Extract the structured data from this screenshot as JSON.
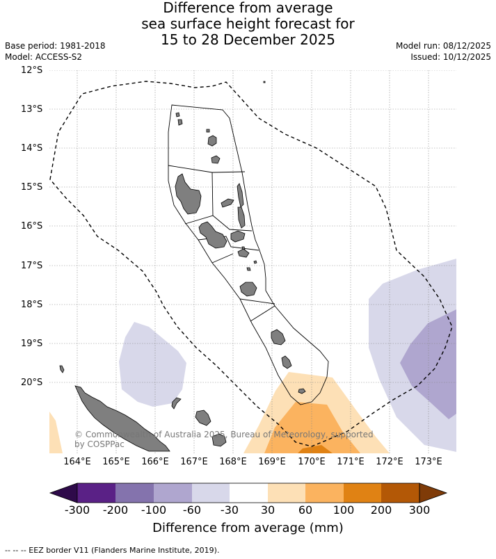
{
  "title": {
    "line1": "Difference from average",
    "line2": "sea surface height forecast for",
    "line3": "15 to 28 December 2025"
  },
  "meta": {
    "base_period": "Base period: 1981-2018",
    "model": "Model: ACCESS-S2",
    "model_run": "Model run: 08/12/2025",
    "issued": "Issued: 10/12/2025"
  },
  "axes": {
    "lat_labels": [
      "12°S",
      "13°S",
      "14°S",
      "15°S",
      "16°S",
      "17°S",
      "18°S",
      "19°S",
      "20°S"
    ],
    "lon_labels": [
      "164°E",
      "165°E",
      "166°E",
      "167°E",
      "168°E",
      "169°E",
      "170°E",
      "171°E",
      "172°E",
      "173°E"
    ]
  },
  "copyright": {
    "line1": "© Commonwealth of Australia 2025, Bureau of Meteorology, supported",
    "line2": "by COSPPac"
  },
  "colorbar": {
    "labels": [
      "-300",
      "-200",
      "-100",
      "-60",
      "-30",
      "30",
      "60",
      "100",
      "200",
      "300"
    ],
    "colors": [
      "#2e0a4a",
      "#5a2186",
      "#8473ad",
      "#afa6cf",
      "#d8d8ea",
      "#ffffff",
      "#fde0b6",
      "#fbb35f",
      "#e08214",
      "#b35806",
      "#7f3b08"
    ],
    "title": "Difference from average (mm)"
  },
  "legend": {
    "text": "--  --  -- EEZ border V11 (Flanders Marine Institute, 2019)."
  }
}
